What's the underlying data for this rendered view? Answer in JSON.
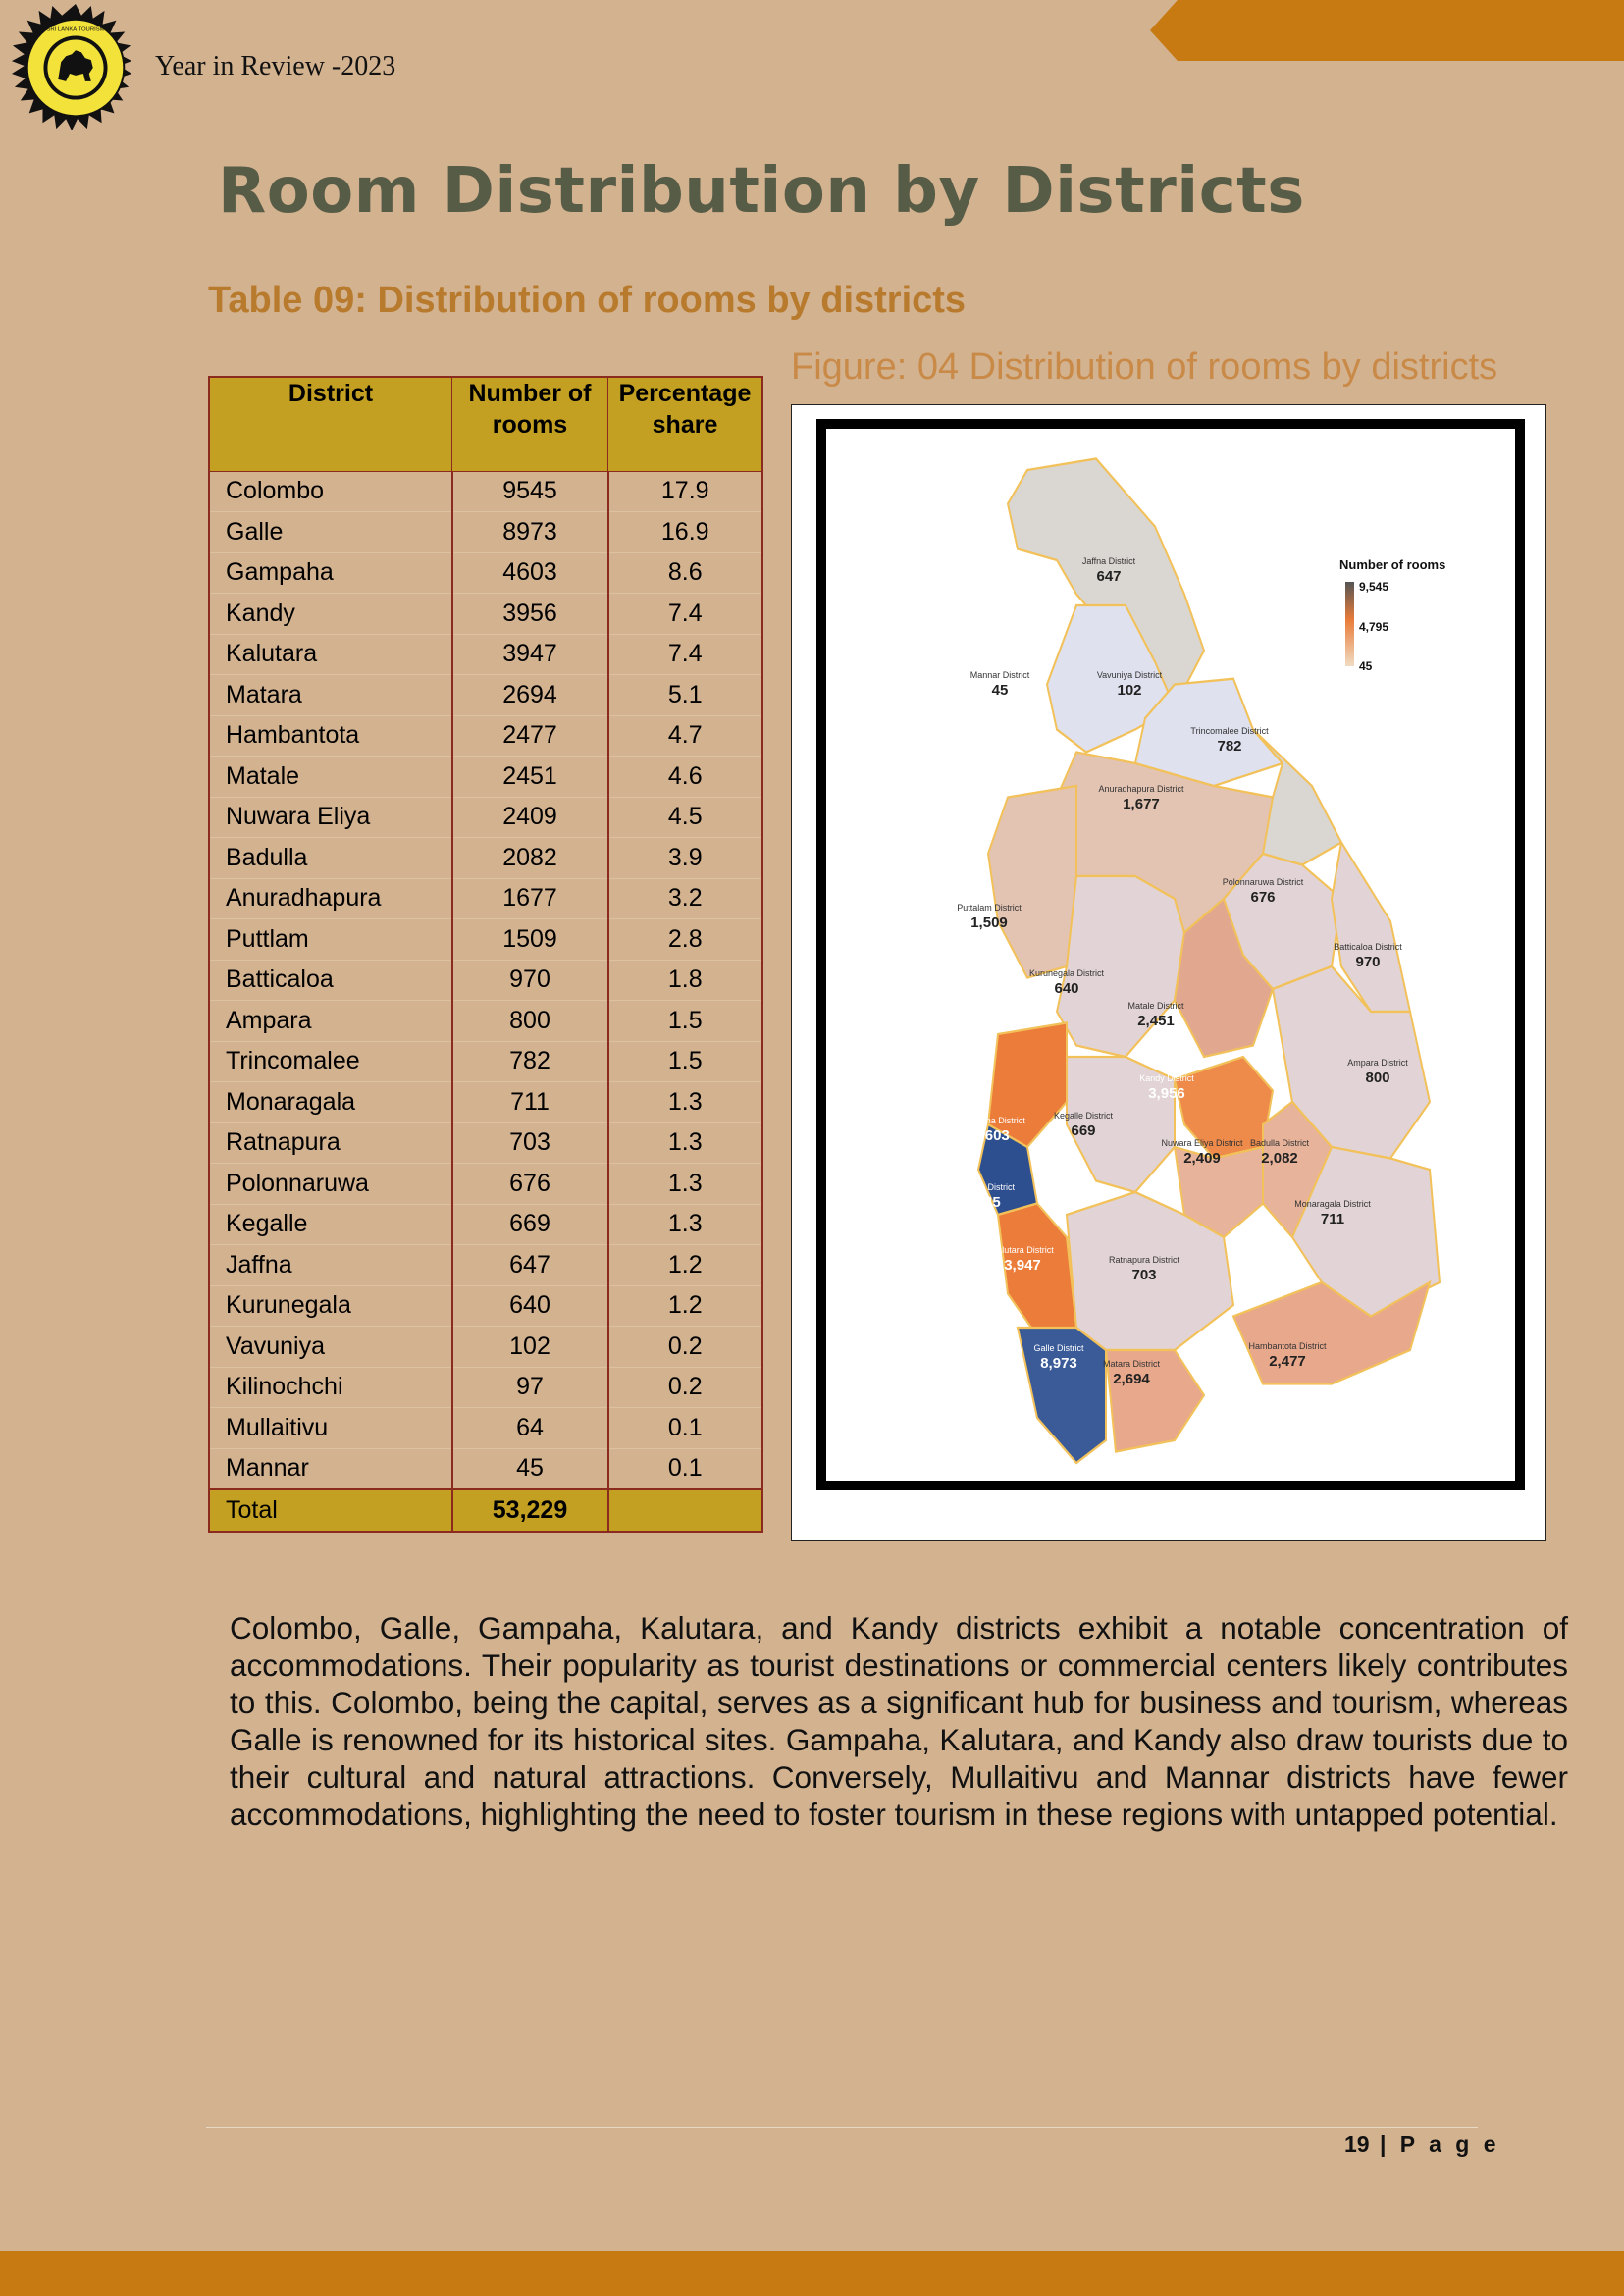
{
  "header": {
    "text": "Year in Review -2023",
    "logo_icon": "sri-lanka-tourism-emblem"
  },
  "page_title": "Room Distribution by Districts",
  "table_caption": "Table 09: Distribution of rooms by districts",
  "table": {
    "headers": [
      "District",
      "Number of rooms",
      "Percentage share"
    ],
    "rows": [
      [
        "Colombo",
        "9545",
        "17.9"
      ],
      [
        "Galle",
        "8973",
        "16.9"
      ],
      [
        "Gampaha",
        "4603",
        "8.6"
      ],
      [
        "Kandy",
        "3956",
        "7.4"
      ],
      [
        "Kalutara",
        "3947",
        "7.4"
      ],
      [
        "Matara",
        "2694",
        "5.1"
      ],
      [
        "Hambantota",
        "2477",
        "4.7"
      ],
      [
        "Matale",
        "2451",
        "4.6"
      ],
      [
        "Nuwara  Eliya",
        "2409",
        "4.5"
      ],
      [
        "Badulla",
        "2082",
        "3.9"
      ],
      [
        "Anuradhapura",
        "1677",
        "3.2"
      ],
      [
        "Puttlam",
        "1509",
        "2.8"
      ],
      [
        "Batticaloa",
        "970",
        "1.8"
      ],
      [
        "Ampara",
        "800",
        "1.5"
      ],
      [
        "Trincomalee",
        "782",
        "1.5"
      ],
      [
        "Monaragala",
        "711",
        "1.3"
      ],
      [
        "Ratnapura",
        "703",
        "1.3"
      ],
      [
        "Polonnaruwa",
        "676",
        "1.3"
      ],
      [
        "Kegalle",
        "669",
        "1.3"
      ],
      [
        "Jaffna",
        "647",
        "1.2"
      ],
      [
        "Kurunegala",
        "640",
        "1.2"
      ],
      [
        "Vavuniya",
        "102",
        "0.2"
      ],
      [
        "Kilinochchi",
        "97",
        "0.2"
      ],
      [
        "Mullaitivu",
        "64",
        "0.1"
      ],
      [
        "Mannar",
        "45",
        "0.1"
      ]
    ],
    "total": [
      "Total",
      "53,229",
      ""
    ]
  },
  "figure_caption": "Figure: 04   Distribution of rooms by districts",
  "map": {
    "legend_title": "Number of rooms",
    "legend_values": [
      "9,545",
      "4,795",
      "45"
    ],
    "colors": {
      "high": "#2e4f8f",
      "mid": "#e97c3a",
      "low": "#e8d9d0"
    },
    "districts": [
      {
        "name": "Jaffna District",
        "value": "647"
      },
      {
        "name": "Mannar District",
        "value": "45"
      },
      {
        "name": "Vavuniya District",
        "value": "102"
      },
      {
        "name": "Trincomalee District",
        "value": "782"
      },
      {
        "name": "Anuradhapura District",
        "value": "1,677"
      },
      {
        "name": "Puttalam District",
        "value": "1,509"
      },
      {
        "name": "Polonnaruwa District",
        "value": "676"
      },
      {
        "name": "Batticaloa District",
        "value": "970"
      },
      {
        "name": "Kurunegala District",
        "value": "640"
      },
      {
        "name": "Matale District",
        "value": "2,451"
      },
      {
        "name": "Kandy District",
        "value": "3,956"
      },
      {
        "name": "Ampara District",
        "value": "800"
      },
      {
        "name": "Gampaha District",
        "value": "4,603"
      },
      {
        "name": "Kegalle District",
        "value": "669"
      },
      {
        "name": "Nuwara Eliya District",
        "value": "2,409"
      },
      {
        "name": "Badulla District",
        "value": "2,082"
      },
      {
        "name": "Colombo District",
        "value": "9,545"
      },
      {
        "name": "Monaragala District",
        "value": "711"
      },
      {
        "name": "Kalutara District",
        "value": "3,947"
      },
      {
        "name": "Ratnapura District",
        "value": "703"
      },
      {
        "name": "Hambantota District",
        "value": "2,477"
      },
      {
        "name": "Galle District",
        "value": "8,973"
      },
      {
        "name": "Matara District",
        "value": "2,694"
      }
    ]
  },
  "paragraph": "Colombo, Galle, Gampaha, Kalutara, and Kandy districts exhibit a notable concentration of accommodations. Their popularity as tourist destinations or commercial centers likely contributes to this. Colombo, being the capital, serves as a significant hub for business and tourism, whereas Galle is renowned for its historical sites. Gampaha, Kalutara, and Kandy also draw tourists due to their cultural and natural attractions. Conversely, Mullaitivu and Mannar districts have fewer accommodations, highlighting the need to foster tourism in these regions with untapped potential.",
  "footer": {
    "page_number": "19",
    "page_label": "| P a g e"
  }
}
